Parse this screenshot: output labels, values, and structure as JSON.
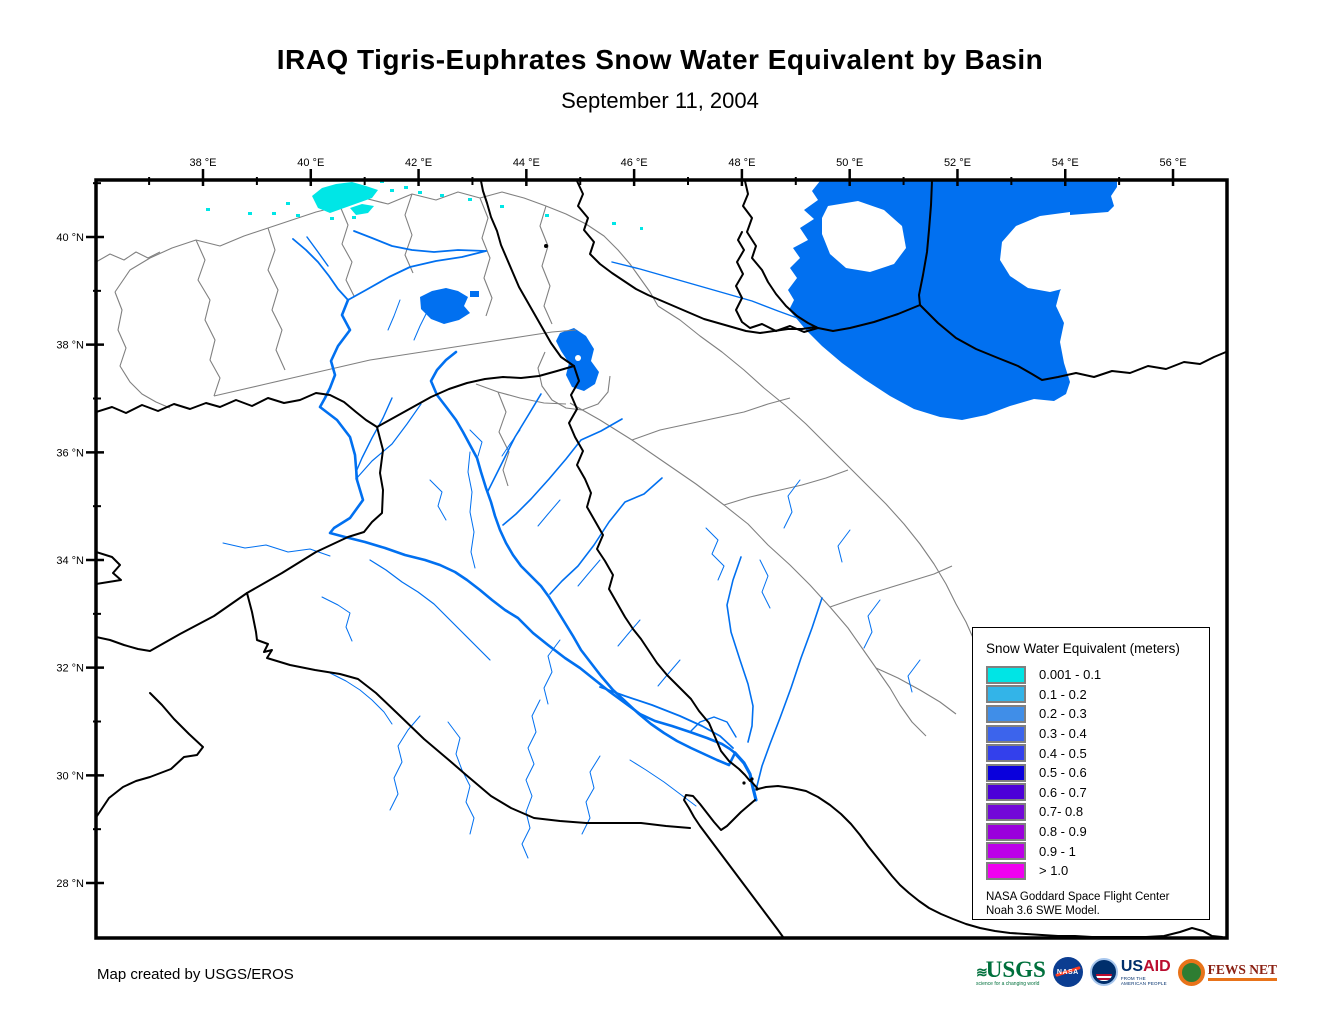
{
  "title": "IRAQ Tigris-Euphrates Snow Water Equivalent by Basin",
  "subtitle": "September 11, 2004",
  "axes": {
    "top_labels": [
      "38 °E",
      "40 °E",
      "42 °E",
      "44 °E",
      "46 °E",
      "48 °E",
      "50 °E",
      "52 °E",
      "54 °E",
      "56 °E"
    ],
    "left_labels": [
      "40 °N",
      "38 °N",
      "36 °N",
      "34 °N",
      "32 °N",
      "30 °N",
      "28 °N"
    ]
  },
  "legend": {
    "title": "Snow Water Equivalent (meters)",
    "items": [
      {
        "color": "#00E5E5",
        "label": "0.001 - 0.1"
      },
      {
        "color": "#33B4E8",
        "label": "0.1 - 0.2"
      },
      {
        "color": "#408EE8",
        "label": "0.2 - 0.3"
      },
      {
        "color": "#3C64EC",
        "label": "0.3 - 0.4"
      },
      {
        "color": "#3340EC",
        "label": "0.4 - 0.5"
      },
      {
        "color": "#0A00DC",
        "label": "0.5 - 0.6"
      },
      {
        "color": "#4C00D8",
        "label": "0.6 - 0.7"
      },
      {
        "color": "#7208D8",
        "label": "0.7- 0.8"
      },
      {
        "color": "#9A00DC",
        "label": "0.8 - 0.9"
      },
      {
        "color": "#BC00E8",
        "label": "0.9 - 1"
      },
      {
        "color": "#F000F0",
        "label": "> 1.0"
      }
    ],
    "note_line1": "NASA Goddard Space Flight Center",
    "note_line2": "Noah 3.6 SWE Model."
  },
  "map_colors": {
    "water": "#0170F0",
    "snow": "#00E6E6",
    "basin_line": "#808080",
    "border_line": "#000000"
  },
  "footer": {
    "credit": "Map created by USGS/EROS"
  },
  "logos": {
    "usgs": {
      "name": "USGS",
      "tagline": "science for a changing world"
    },
    "nasa": {
      "name": "NASA"
    },
    "usaid": {
      "name_us": "US",
      "name_aid": "AID",
      "tagline": "FROM THE AMERICAN PEOPLE"
    },
    "fewsnet": {
      "name": "FEWS NET"
    }
  }
}
